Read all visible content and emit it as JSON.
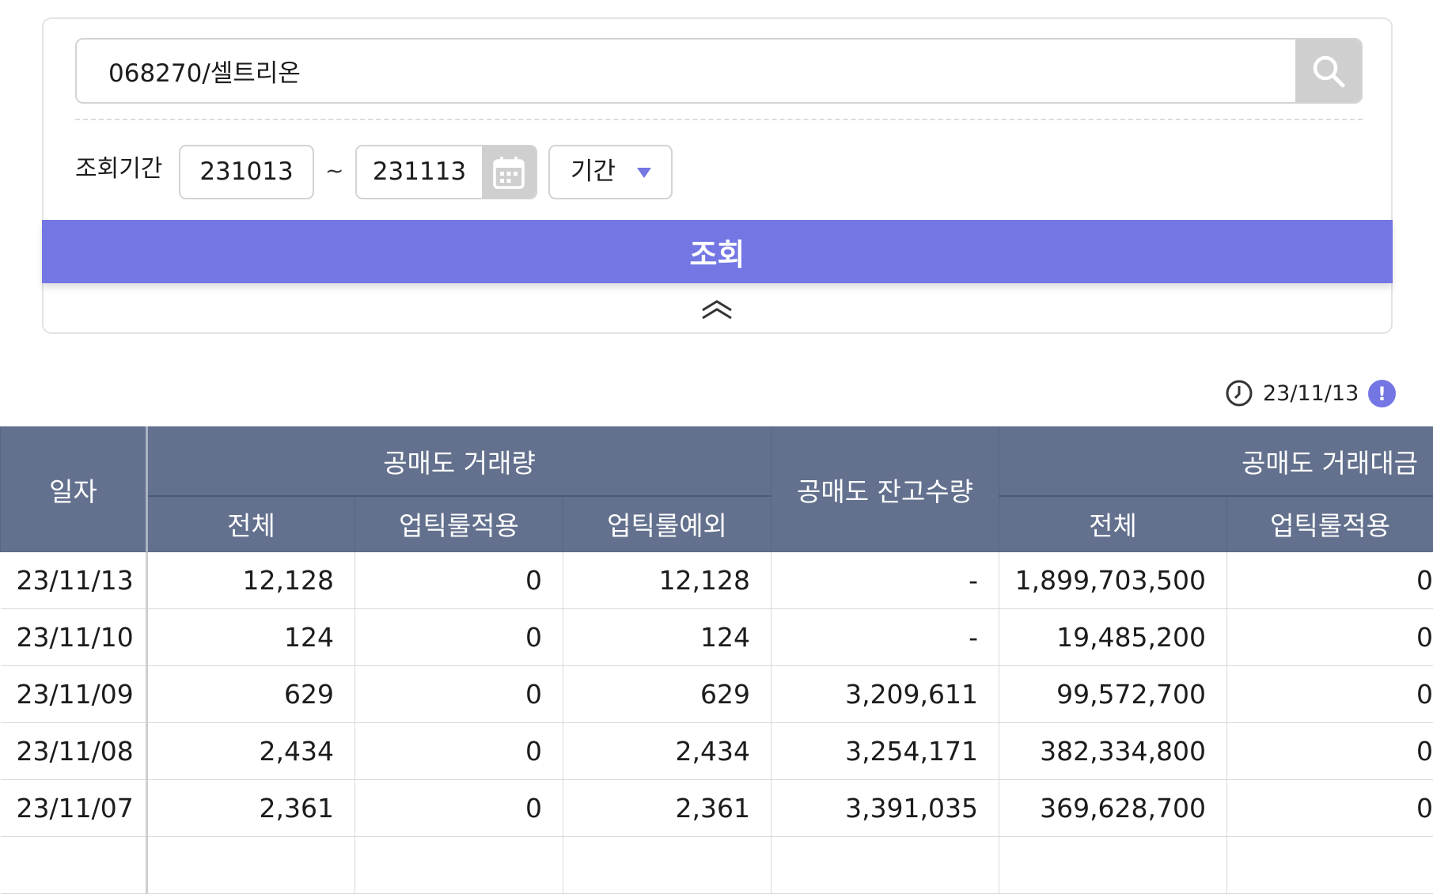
{
  "search": {
    "value": "068270/셀트리온",
    "icon": "search-icon"
  },
  "period": {
    "label": "조회기간",
    "start": "231013",
    "separator": "~",
    "end": "231113",
    "select_value": "기간"
  },
  "query_button": "조회",
  "timestamp": "23/11/13",
  "info_label": "!",
  "colors": {
    "accent": "#7376e3",
    "header_bg": "#63718e"
  },
  "table": {
    "date_header": "일자",
    "group_volume": "공매도 거래량",
    "balance_header": "공매도 잔고수량",
    "group_amount": "공매도 거래대금",
    "sub_total": "전체",
    "sub_uptick": "업틱룰적용",
    "sub_exempt": "업틱룰예외",
    "rows": [
      {
        "date": "23/11/13",
        "vol_total": "12,128",
        "vol_uptick": "0",
        "vol_exempt": "12,128",
        "balance": "-",
        "amt_total": "1,899,703,500",
        "amt_uptick": "0"
      },
      {
        "date": "23/11/10",
        "vol_total": "124",
        "vol_uptick": "0",
        "vol_exempt": "124",
        "balance": "-",
        "amt_total": "19,485,200",
        "amt_uptick": "0"
      },
      {
        "date": "23/11/09",
        "vol_total": "629",
        "vol_uptick": "0",
        "vol_exempt": "629",
        "balance": "3,209,611",
        "amt_total": "99,572,700",
        "amt_uptick": "0"
      },
      {
        "date": "23/11/08",
        "vol_total": "2,434",
        "vol_uptick": "0",
        "vol_exempt": "2,434",
        "balance": "3,254,171",
        "amt_total": "382,334,800",
        "amt_uptick": "0"
      },
      {
        "date": "23/11/07",
        "vol_total": "2,361",
        "vol_uptick": "0",
        "vol_exempt": "2,361",
        "balance": "3,391,035",
        "amt_total": "369,628,700",
        "amt_uptick": "0"
      },
      {
        "date": "",
        "vol_total": "",
        "vol_uptick": "",
        "vol_exempt": "",
        "balance": "",
        "amt_total": "",
        "amt_uptick": ""
      }
    ]
  }
}
